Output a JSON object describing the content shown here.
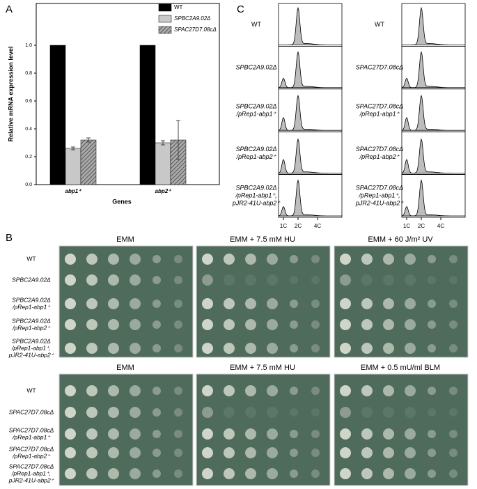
{
  "chart_data": {
    "type": "bar",
    "panel_label": "A",
    "y_label": "Relative mRNA expression level",
    "x_label": "Genes",
    "categories": [
      "abp1⁺",
      "abp2⁺"
    ],
    "series": [
      {
        "name": "WT",
        "color": "#000000",
        "values": [
          1.0,
          1.0
        ],
        "errors": [
          0,
          0
        ]
      },
      {
        "name": "SPBC2A9.02Δ",
        "color": "#c8c8c8",
        "values": [
          0.26,
          0.3
        ],
        "errors": [
          0.01,
          0.015
        ]
      },
      {
        "name": "SPAC27D7.08cΔ",
        "color": "#8c8c8c",
        "hatch": true,
        "values": [
          0.32,
          0.32
        ],
        "errors": [
          0.015,
          0.14
        ]
      }
    ],
    "ylim": [
      0,
      1.3
    ],
    "yticks": [
      {
        "value": 0,
        "label": "0.0"
      },
      {
        "value": 0.2,
        "label": "0.2"
      },
      {
        "value": 0.4,
        "label": "0.4"
      },
      {
        "value": 0.6,
        "label": "0.6"
      },
      {
        "value": 0.8,
        "label": "0.8"
      },
      {
        "value": 1,
        "label": "1.0"
      }
    ],
    "legend": "top-right"
  },
  "histograms": {
    "panel_label": "C",
    "x_ticks": [
      "1C",
      "2C",
      "4C"
    ],
    "columns": [
      {
        "rows": [
          [
            "WT"
          ],
          [
            "SPBC2A9.02Δ"
          ],
          [
            "SPBC2A9.02Δ",
            "/pRep1-abp1⁺"
          ],
          [
            "SPBC2A9.02Δ",
            "/pRep1-abp2⁺"
          ],
          [
            "SPBC2A9.02Δ",
            "/pRep1-abp1⁺,",
            "pJR2-41U-abp2⁺"
          ]
        ]
      },
      {
        "rows": [
          [
            "WT"
          ],
          [
            "SPAC27D7.08cΔ"
          ],
          [
            "SPAC27D7.08cΔ",
            "/pRep1-abp1⁺"
          ],
          [
            "SPAC27D7.08cΔ",
            "/pRep1-abp2⁺"
          ],
          [
            "SPAC27D7.08cΔ",
            "/pRep1-abp1⁺,",
            "pJR2-41U-abp2⁺"
          ]
        ]
      }
    ]
  },
  "spot_assays": {
    "panel_label": "B",
    "blocks": [
      {
        "conditions": [
          "EMM",
          "EMM + 7.5 mM HU",
          "EMM + 60 J/m² UV"
        ],
        "rows": [
          [
            "WT"
          ],
          [
            "SPBC2A9.02Δ"
          ],
          [
            "SPBC2A9.02Δ",
            "/pRep1-abp1⁺"
          ],
          [
            "SPBC2A9.02Δ",
            "/pRep1-abp2⁺"
          ],
          [
            "SPBC2A9.02Δ",
            "/pRep1-abp1⁺,",
            "pJR2-41U-abp2⁺"
          ]
        ]
      },
      {
        "conditions": [
          "EMM",
          "EMM + 7.5 mM HU",
          "EMM + 0.5 mU/ml BLM"
        ],
        "rows": [
          [
            "WT"
          ],
          [
            "SPAC27D7.08cΔ"
          ],
          [
            "SPAC27D7.08cΔ",
            "/pRep1-abp1⁺"
          ],
          [
            "SPAC27D7.08cΔ",
            "/pRep1-abp2⁺"
          ],
          [
            "SPAC27D7.08cΔ",
            "/pRep1-abp1⁺,",
            "pJR2-41U-abp2⁺"
          ]
        ]
      }
    ]
  }
}
